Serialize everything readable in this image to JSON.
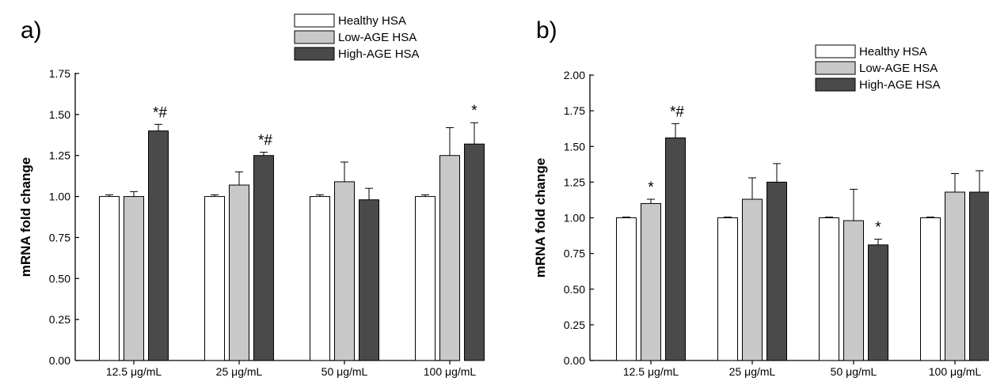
{
  "chart_data": [
    {
      "panel_label": "a)",
      "type": "bar",
      "categories": [
        "12.5 μg/mL",
        "25 μg/mL",
        "50 μg/mL",
        "100 μg/mL"
      ],
      "ylabel": "mRNA fold change",
      "xlabel": "",
      "ylim": [
        0,
        1.75
      ],
      "yticks": [
        0,
        0.25,
        0.5,
        0.75,
        1.0,
        1.25,
        1.5,
        1.75
      ],
      "ytick_labels": [
        "0.00",
        "0.25",
        "0.50",
        "0.75",
        "1.00",
        "1.25",
        "1.50",
        "1.75"
      ],
      "legend_position": "top-right",
      "series": [
        {
          "name": "Healthy HSA",
          "color": "#ffffff",
          "values": [
            1.0,
            1.0,
            1.0,
            1.0
          ],
          "errors": [
            0.01,
            0.01,
            0.01,
            0.01
          ]
        },
        {
          "name": "Low-AGE HSA",
          "color": "#c8c8c8",
          "values": [
            1.0,
            1.07,
            1.09,
            1.25
          ],
          "errors": [
            0.03,
            0.08,
            0.12,
            0.17
          ]
        },
        {
          "name": "High-AGE HSA",
          "color": "#4a4a4a",
          "values": [
            1.4,
            1.25,
            0.98,
            1.32
          ],
          "errors": [
            0.04,
            0.02,
            0.07,
            0.13
          ]
        }
      ],
      "annotations": [
        {
          "category": 0,
          "series": 2,
          "text": "*#"
        },
        {
          "category": 1,
          "series": 2,
          "text": "*#"
        },
        {
          "category": 3,
          "series": 2,
          "text": "*"
        }
      ]
    },
    {
      "panel_label": "b)",
      "type": "bar",
      "categories": [
        "12.5 μg/mL",
        "25 μg/mL",
        "50 μg/mL",
        "100 μg/mL"
      ],
      "ylabel": "mRNA fold change",
      "xlabel": "",
      "ylim": [
        0,
        2.0
      ],
      "yticks": [
        0,
        0.25,
        0.5,
        0.75,
        1.0,
        1.25,
        1.5,
        1.75,
        2.0
      ],
      "ytick_labels": [
        "0.00",
        "0.25",
        "0.50",
        "0.75",
        "1.00",
        "1.25",
        "1.50",
        "1.75",
        "2.00"
      ],
      "legend_position": "top-right",
      "series": [
        {
          "name": "Healthy HSA",
          "color": "#ffffff",
          "values": [
            1.0,
            1.0,
            1.0,
            1.0
          ],
          "errors": [
            0.005,
            0.005,
            0.005,
            0.005
          ]
        },
        {
          "name": "Low-AGE HSA",
          "color": "#c8c8c8",
          "values": [
            1.1,
            1.13,
            0.98,
            1.18
          ],
          "errors": [
            0.03,
            0.15,
            0.22,
            0.13
          ]
        },
        {
          "name": "High-AGE HSA",
          "color": "#4a4a4a",
          "values": [
            1.56,
            1.25,
            0.81,
            1.18
          ],
          "errors": [
            0.1,
            0.13,
            0.04,
            0.15
          ]
        }
      ],
      "annotations": [
        {
          "category": 0,
          "series": 1,
          "text": "*"
        },
        {
          "category": 0,
          "series": 2,
          "text": "*#"
        },
        {
          "category": 2,
          "series": 2,
          "text": "*"
        }
      ]
    }
  ]
}
